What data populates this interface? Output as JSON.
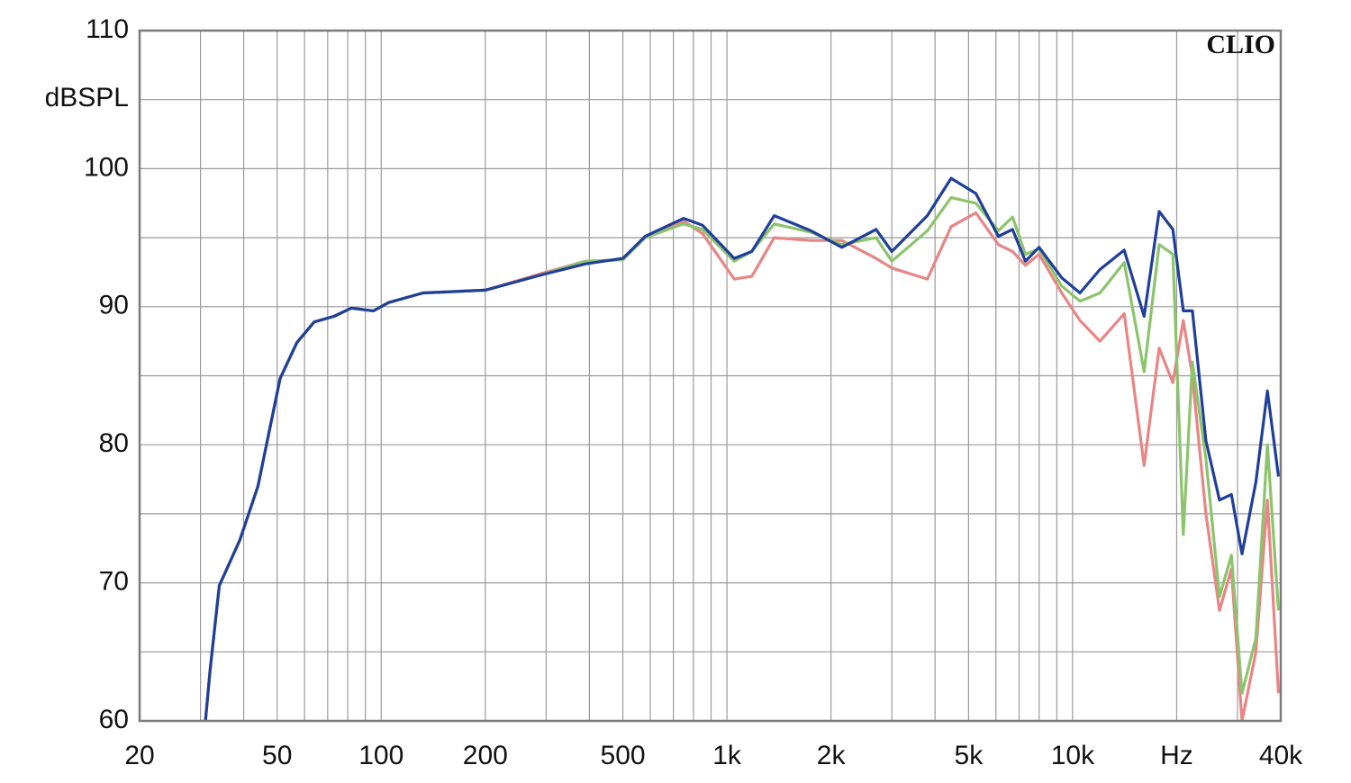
{
  "chart_data": {
    "type": "line",
    "title": "CLIO",
    "y_label": "dBSPL",
    "x_scale": "log",
    "grid": true,
    "xlim": [
      20,
      40000
    ],
    "ylim": [
      60,
      110
    ],
    "xticks": [
      20,
      50,
      100,
      200,
      500,
      {
        "value": 1000,
        "label": "1k"
      },
      {
        "value": 2000,
        "label": "2k"
      },
      {
        "value": 5000,
        "label": "5k"
      },
      {
        "value": 10000,
        "label": "10k"
      },
      {
        "value": 20000,
        "label": "Hz"
      },
      {
        "value": 40000,
        "label": "40k"
      }
    ],
    "x_minor_ticks": [
      30,
      40,
      60,
      70,
      80,
      90,
      300,
      400,
      600,
      700,
      800,
      900,
      3000,
      4000,
      6000,
      7000,
      8000,
      9000,
      30000
    ],
    "yticks": [
      60,
      70,
      80,
      90,
      100,
      110
    ],
    "y_minor_ticks": [
      65,
      75,
      85,
      95,
      105
    ],
    "x": [
      31,
      32,
      34,
      39,
      44,
      48,
      51,
      57,
      64,
      73,
      82,
      95,
      105,
      132,
      200,
      290,
      390,
      500,
      580,
      750,
      850,
      1050,
      1180,
      1370,
      1750,
      2150,
      2700,
      3000,
      3800,
      4450,
      5250,
      6100,
      6700,
      7300,
      8000,
      9300,
      10500,
      12000,
      14100,
      16100,
      17800,
      19500,
      20900,
      22200,
      24300,
      26600,
      28800,
      30900,
      33900,
      36600,
      39400
    ],
    "series": [
      {
        "color": "#e88585",
        "values": [
          60,
          63.7,
          69.8,
          73.1,
          77,
          81.6,
          84.8,
          87.4,
          88.9,
          89.3,
          89.9,
          89.7,
          90.3,
          91,
          91.2,
          92.4,
          93.3,
          93.4,
          95.0,
          96.2,
          95.3,
          92.0,
          92.2,
          95.0,
          94.8,
          94.8,
          93.5,
          92.8,
          92.0,
          95.8,
          96.8,
          94.5,
          94.0,
          93.0,
          93.8,
          91.0,
          89.0,
          87.5,
          89.5,
          78.5,
          87.0,
          84.5,
          89.0,
          85,
          75,
          68,
          71,
          60,
          65,
          76,
          62
        ]
      },
      {
        "color": "#8cc46c",
        "values": [
          60,
          63.7,
          69.8,
          73.1,
          77,
          81.6,
          84.8,
          87.4,
          88.9,
          89.3,
          89.9,
          89.7,
          90.3,
          91,
          91.2,
          92.3,
          93.3,
          93.4,
          95.0,
          96.0,
          95.6,
          93.3,
          94.0,
          96.0,
          95.4,
          94.5,
          95.0,
          93.3,
          95.5,
          97.9,
          97.5,
          95.5,
          96.5,
          93.8,
          94.2,
          91.5,
          90.4,
          91.0,
          93.2,
          85.3,
          94.5,
          93.8,
          73.5,
          86,
          79,
          69,
          72,
          62,
          66,
          80,
          68
        ]
      },
      {
        "color": "#1f3f9a",
        "values": [
          60,
          63.7,
          69.8,
          73.1,
          77,
          81.6,
          84.8,
          87.4,
          88.9,
          89.3,
          89.9,
          89.7,
          90.3,
          91,
          91.2,
          92.3,
          93.1,
          93.5,
          95.1,
          96.4,
          95.9,
          93.5,
          94,
          96.6,
          95.5,
          94.3,
          95.6,
          94,
          96.6,
          99.3,
          98.2,
          95.1,
          95.6,
          93.3,
          94.3,
          92.1,
          91,
          92.7,
          94.1,
          89.3,
          96.9,
          95.6,
          89.7,
          89.7,
          80.3,
          76,
          76.4,
          72.1,
          77.3,
          83.9,
          77.7
        ]
      }
    ]
  }
}
